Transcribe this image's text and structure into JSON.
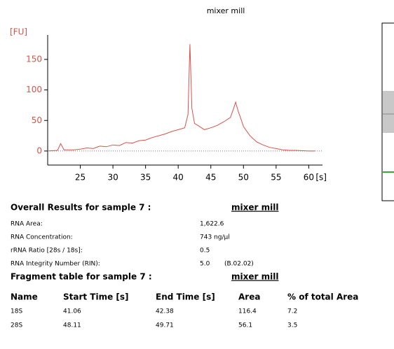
{
  "chart_data": {
    "type": "line",
    "title": "mixer mill",
    "y_label": "[FU]",
    "x_label": "[s]",
    "x": [
      20,
      21.5,
      22,
      22.5,
      24,
      25,
      26,
      27,
      28,
      29,
      30,
      31,
      32,
      33,
      34,
      35,
      36,
      37,
      38,
      39,
      40,
      41,
      41.5,
      41.8,
      42.1,
      42.5,
      43,
      44,
      45,
      46,
      47,
      48,
      48.5,
      48.8,
      49.2,
      49.7,
      50,
      51,
      52,
      53,
      54,
      55,
      56,
      57,
      58,
      60,
      61
    ],
    "values": [
      0,
      1,
      12,
      2,
      2,
      3,
      5,
      4,
      8,
      7,
      10,
      9,
      14,
      13,
      17,
      18,
      22,
      25,
      28,
      32,
      35,
      38,
      60,
      175,
      70,
      45,
      42,
      35,
      38,
      42,
      48,
      55,
      70,
      80,
      65,
      50,
      40,
      25,
      15,
      10,
      6,
      4,
      2,
      1,
      1,
      0,
      0
    ],
    "color": "#d9534a",
    "xlim": [
      20,
      62
    ],
    "ylim": [
      -23,
      190
    ],
    "xticks": [
      25,
      30,
      35,
      40,
      45,
      50,
      55,
      60
    ],
    "yticks": [
      0,
      50,
      100,
      150
    ],
    "grid": false
  },
  "overall_results": {
    "title": "Overall Results for sample 7 :",
    "sample_name": "mixer mill",
    "rows": [
      [
        "RNA Area:",
        "1,622.6"
      ],
      [
        "RNA Concentration:",
        "743 ng/µl"
      ],
      [
        "rRNA Ratio [28s / 18s]:",
        "0.5"
      ],
      [
        "RNA Integrity Number (RIN):",
        "5.0",
        "(B.02.02)"
      ]
    ]
  },
  "fragment_table": {
    "title": "Fragment table for sample 7 :",
    "sample_name": "mixer mill",
    "columns": [
      "Name",
      "Start Time [s]",
      "End Time [s]",
      "Area",
      "% of total Area"
    ],
    "rows": [
      [
        "18S",
        "41.06",
        "42.38",
        "116.4",
        "7.2"
      ],
      [
        "28S",
        "48.11",
        "49.71",
        "56.1",
        "3.5"
      ]
    ]
  }
}
